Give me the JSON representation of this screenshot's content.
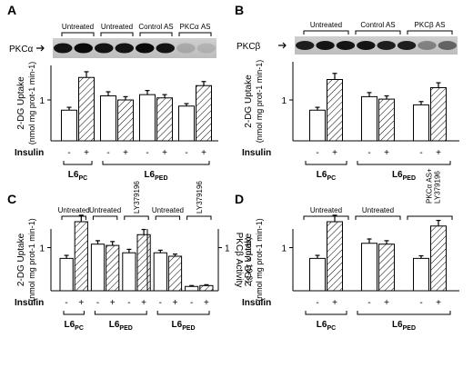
{
  "figure": {
    "panels": [
      {
        "letter": "A",
        "blot_label": "PKCα",
        "has_blot": true
      },
      {
        "letter": "B",
        "blot_label": "PKCβ",
        "has_blot": true
      },
      {
        "letter": "C",
        "blot_label": "",
        "has_blot": false
      },
      {
        "letter": "D",
        "blot_label": "",
        "has_blot": false
      }
    ]
  },
  "chart_data": [
    {
      "panel": "A",
      "type": "bar",
      "ylabel": "2-DG Uptake (nmol mg prot-1 min-1)",
      "ylim": [
        0,
        2
      ],
      "yticks": [
        1
      ],
      "groups": [
        {
          "label": "Untreated",
          "cell_line": "L6PC",
          "values": [
            0.75,
            1.55
          ],
          "errors": [
            0.07,
            0.14
          ]
        },
        {
          "label": "Untreated",
          "cell_line": "L6PED",
          "values": [
            1.1,
            1.0
          ],
          "errors": [
            0.1,
            0.08
          ]
        },
        {
          "label": "Control AS",
          "cell_line": "L6PED",
          "values": [
            1.13,
            1.05
          ],
          "errors": [
            0.1,
            0.08
          ]
        },
        {
          "label": "PKCα AS",
          "cell_line": "L6PED",
          "values": [
            0.85,
            1.35
          ],
          "errors": [
            0.06,
            0.1
          ]
        }
      ],
      "insulin": [
        "-",
        "+"
      ],
      "cell_lines": [
        "L6PC",
        "L6PED"
      ]
    },
    {
      "panel": "B",
      "type": "bar",
      "ylabel": "2-DG Uptake (nmol mg prot-1 min-1)",
      "ylim": [
        0,
        2
      ],
      "yticks": [
        1
      ],
      "groups": [
        {
          "label": "Untreated",
          "cell_line": "L6PC",
          "values": [
            0.75,
            1.5
          ],
          "errors": [
            0.07,
            0.15
          ]
        },
        {
          "label": "Control AS",
          "cell_line": "L6PED",
          "values": [
            1.08,
            1.02
          ],
          "errors": [
            0.1,
            0.08
          ]
        },
        {
          "label": "PKCβ AS",
          "cell_line": "L6PED",
          "values": [
            0.88,
            1.3
          ],
          "errors": [
            0.08,
            0.12
          ]
        }
      ],
      "insulin": [
        "-",
        "+"
      ],
      "cell_lines": [
        "L6PC",
        "L6PED"
      ]
    },
    {
      "panel": "C",
      "type": "bar",
      "ylabel": "2-DG Uptake (nmol mg prot-1 min-1)",
      "ylabel_right": "PKCβ Activity (cpm x 10-3)",
      "ylim": [
        0,
        2
      ],
      "yticks": [
        1
      ],
      "yticks_right": [
        1
      ],
      "groups": [
        {
          "label": "Untreated",
          "cell_line": "L6PC",
          "values": [
            0.75,
            1.6
          ],
          "errors": [
            0.07,
            0.15
          ]
        },
        {
          "label": "Untreated",
          "cell_line": "L6PED",
          "values": [
            1.08,
            1.05
          ],
          "errors": [
            0.08,
            0.09
          ]
        },
        {
          "label": "LY379196",
          "cell_line": "L6PED",
          "values": [
            0.88,
            1.3
          ],
          "errors": [
            0.08,
            0.12
          ]
        },
        {
          "label": "Untreated",
          "cell_line": "L6PED",
          "axis": "right",
          "values": [
            0.88,
            0.8
          ],
          "errors": [
            0.06,
            0.05
          ]
        },
        {
          "label": "LY379196",
          "cell_line": "L6PED",
          "axis": "right",
          "values": [
            0.1,
            0.12
          ],
          "errors": [
            0.02,
            0.02
          ]
        }
      ],
      "insulin": [
        "-",
        "+"
      ],
      "cell_lines": [
        "L6PC",
        "L6PED",
        "L6PED"
      ]
    },
    {
      "panel": "D",
      "type": "bar",
      "ylabel": "2-DG Uptake (nmol mg prot-1 min-1)",
      "ylim": [
        0,
        2
      ],
      "yticks": [
        1
      ],
      "groups": [
        {
          "label": "Untreated",
          "cell_line": "L6PC",
          "values": [
            0.75,
            1.6
          ],
          "errors": [
            0.07,
            0.15
          ]
        },
        {
          "label": "Untreated",
          "cell_line": "L6PED",
          "values": [
            1.1,
            1.08
          ],
          "errors": [
            0.1,
            0.08
          ]
        },
        {
          "label": "PKCα AS+ LY379196",
          "cell_line": "L6PED",
          "values": [
            0.75,
            1.5
          ],
          "errors": [
            0.06,
            0.13
          ]
        }
      ],
      "insulin": [
        "-",
        "+"
      ],
      "cell_lines": [
        "L6PC",
        "L6PED"
      ]
    }
  ],
  "labels": {
    "insulin": "Insulin",
    "y_main": "2-DG Uptake",
    "y_unit": "(nmol mg prot-1 min-1)",
    "y_right_main": "PKCβ Activity",
    "y_right_unit": "(cpm x 10-3)"
  }
}
